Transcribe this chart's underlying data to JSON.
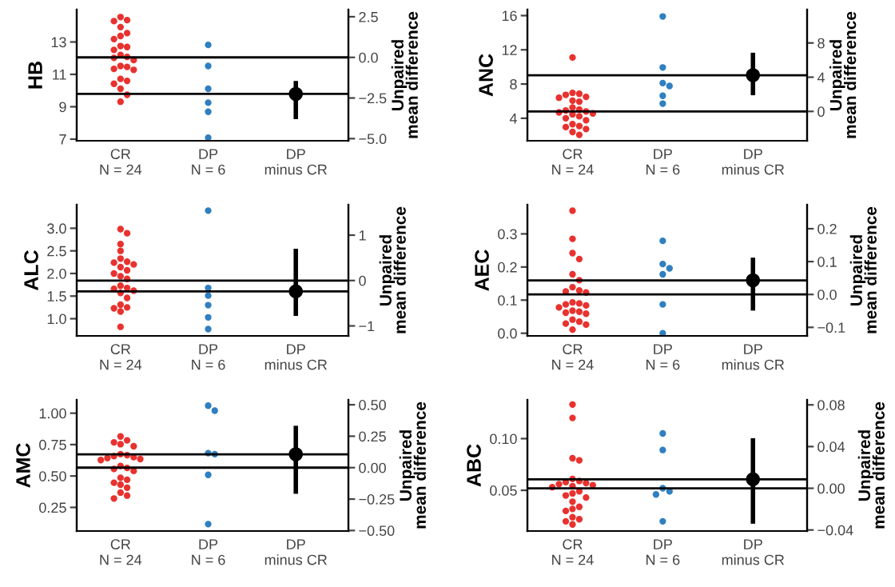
{
  "chart_data": [
    {
      "type": "scatter",
      "categories": [
        "CR\nN = 24",
        "DP\nN = 6",
        "DP\nminus CR"
      ],
      "ylabel": "HB",
      "y2label": "Unpaired\nmean difference",
      "ylim": [
        6.9,
        15.0
      ],
      "yticks": [
        7,
        9,
        11,
        13
      ],
      "y2lim": [
        -5.13,
        2.94
      ],
      "y2ticks": [
        {
          "value": -5,
          "label": "−5.0"
        },
        {
          "value": -2.5,
          "label": "−2.5"
        },
        {
          "value": 0,
          "label": "0.0"
        },
        {
          "value": 2.5,
          "label": "2.5"
        }
      ],
      "marker": "circle",
      "series": [
        {
          "color": "#e8322f",
          "x": [
            "CR\nN = 24",
            "CR\nN = 24",
            "CR\nN = 24",
            "CR\nN = 24",
            "CR\nN = 24",
            "CR\nN = 24",
            "CR\nN = 24",
            "CR\nN = 24",
            "CR\nN = 24",
            "CR\nN = 24",
            "CR\nN = 24",
            "CR\nN = 24",
            "CR\nN = 24",
            "CR\nN = 24",
            "CR\nN = 24",
            "CR\nN = 24",
            "CR\nN = 24",
            "CR\nN = 24",
            "CR\nN = 24",
            "CR\nN = 24",
            "CR\nN = 24",
            "CR\nN = 24",
            "CR\nN = 24",
            "CR\nN = 24"
          ],
          "values": [
            14.54,
            14.35,
            14.29,
            13.92,
            13.55,
            13.37,
            13.18,
            12.75,
            12.69,
            12.51,
            12.2,
            12.08,
            12.02,
            11.89,
            11.52,
            11.46,
            11.34,
            11.28,
            10.72,
            10.6,
            10.42,
            10.11,
            9.74,
            9.31
          ]
        },
        {
          "color": "#2f7fc1",
          "x": [
            "DP\nN = 6",
            "DP\nN = 6",
            "DP\nN = 6",
            "DP\nN = 6",
            "DP\nN = 6",
            "DP\nN = 6"
          ],
          "values": [
            12.82,
            11.52,
            10.11,
            9.25,
            8.69,
            7.09
          ]
        },
        {
          "color": "#000000",
          "axis": "y2",
          "values": [
            null,
            null,
            -2.25
          ],
          "errors": [
            null,
            null,
            [
              -3.8,
              -1.45
            ]
          ]
        }
      ],
      "ref_lines": [
        {
          "axis": "y2",
          "value": 0,
          "color": "#000000"
        },
        {
          "axis": "y2",
          "value": -2.25,
          "color": "#000000"
        }
      ]
    },
    {
      "type": "scatter",
      "categories": [
        "CR\nN = 24",
        "DP\nN = 6",
        "DP\nminus CR"
      ],
      "ylabel": "ANC",
      "y2label": "Unpaired\nmean difference",
      "ylim": [
        1.37,
        16.7
      ],
      "yticks": [
        4,
        8,
        12,
        16
      ],
      "y2lim": [
        -3.43,
        11.9
      ],
      "y2ticks": [
        0,
        4,
        8
      ],
      "marker": "circle",
      "series": [
        {
          "color": "#e8322f",
          "x": [
            "CR\nN = 24",
            "CR\nN = 24",
            "CR\nN = 24",
            "CR\nN = 24",
            "CR\nN = 24",
            "CR\nN = 24",
            "CR\nN = 24",
            "CR\nN = 24",
            "CR\nN = 24",
            "CR\nN = 24",
            "CR\nN = 24",
            "CR\nN = 24",
            "CR\nN = 24",
            "CR\nN = 24",
            "CR\nN = 24",
            "CR\nN = 24",
            "CR\nN = 24",
            "CR\nN = 24",
            "CR\nN = 24",
            "CR\nN = 24",
            "CR\nN = 24",
            "CR\nN = 24",
            "CR\nN = 24",
            "CR\nN = 24"
          ],
          "values": [
            11.1,
            6.97,
            6.86,
            6.74,
            6.5,
            6.4,
            6.06,
            5.94,
            5.26,
            5.03,
            4.91,
            4.8,
            4.69,
            4.57,
            4.46,
            4.23,
            4.0,
            3.77,
            3.31,
            3.09,
            2.97,
            2.74,
            2.4,
            2.06
          ]
        },
        {
          "color": "#2f7fc1",
          "x": [
            "DP\nN = 6",
            "DP\nN = 6",
            "DP\nN = 6",
            "DP\nN = 6",
            "DP\nN = 6",
            "DP\nN = 6"
          ],
          "values": [
            15.9,
            9.94,
            8.11,
            7.77,
            6.63,
            5.71
          ]
        },
        {
          "color": "#000000",
          "axis": "y2",
          "values": [
            null,
            null,
            4.23
          ],
          "errors": [
            null,
            null,
            [
              1.89,
              6.86
            ]
          ]
        }
      ],
      "ref_lines": [
        {
          "axis": "y2",
          "value": 0,
          "color": "#000000"
        },
        {
          "axis": "y2",
          "value": 4.23,
          "color": "#000000"
        }
      ]
    },
    {
      "type": "scatter",
      "categories": [
        "CR\nN = 24",
        "DP\nN = 6",
        "DP\nminus CR"
      ],
      "ylabel": "ALC",
      "y2label": "Unpaired\nmean difference",
      "ylim": [
        0.62,
        3.52
      ],
      "yticks": [
        {
          "value": 1.0,
          "label": "1.0"
        },
        1.5,
        {
          "value": 2.0,
          "label": "2.0"
        },
        2.5,
        {
          "value": 3.0,
          "label": "3.0"
        }
      ],
      "y2lim": [
        -1.22,
        1.67
      ],
      "y2ticks": [
        {
          "value": -1,
          "label": "−1"
        },
        0,
        1
      ],
      "marker": "circle",
      "series": [
        {
          "color": "#e8322f",
          "x": [
            "CR\nN = 24",
            "CR\nN = 24",
            "CR\nN = 24",
            "CR\nN = 24",
            "CR\nN = 24",
            "CR\nN = 24",
            "CR\nN = 24",
            "CR\nN = 24",
            "CR\nN = 24",
            "CR\nN = 24",
            "CR\nN = 24",
            "CR\nN = 24",
            "CR\nN = 24",
            "CR\nN = 24",
            "CR\nN = 24",
            "CR\nN = 24",
            "CR\nN = 24",
            "CR\nN = 24",
            "CR\nN = 24",
            "CR\nN = 24",
            "CR\nN = 24",
            "CR\nN = 24",
            "CR\nN = 24",
            "CR\nN = 24"
          ],
          "values": [
            2.98,
            2.89,
            2.65,
            2.5,
            2.33,
            2.26,
            2.24,
            2.2,
            2.14,
            2.07,
            2.0,
            1.94,
            1.88,
            1.73,
            1.68,
            1.66,
            1.62,
            1.57,
            1.46,
            1.31,
            1.25,
            1.23,
            1.16,
            0.82
          ]
        },
        {
          "color": "#2f7fc1",
          "x": [
            "DP\nN = 6",
            "DP\nN = 6",
            "DP\nN = 6",
            "DP\nN = 6",
            "DP\nN = 6",
            "DP\nN = 6"
          ],
          "values": [
            3.39,
            1.68,
            1.51,
            1.3,
            1.03,
            0.77
          ]
        },
        {
          "color": "#000000",
          "axis": "y2",
          "values": [
            null,
            null,
            -0.24
          ],
          "errors": [
            null,
            null,
            [
              -0.78,
              0.7
            ]
          ]
        }
      ],
      "ref_lines": [
        {
          "axis": "y2",
          "value": 0,
          "color": "#000000"
        },
        {
          "axis": "y2",
          "value": -0.24,
          "color": "#000000"
        }
      ]
    },
    {
      "type": "scatter",
      "categories": [
        "CR\nN = 24",
        "DP\nN = 6",
        "DP\nminus CR"
      ],
      "ylabel": "AEC",
      "y2label": "Unpaired\nmean difference",
      "ylim": [
        -0.008,
        0.388
      ],
      "yticks": [
        {
          "value": 0,
          "label": "0.0"
        },
        0.1,
        0.2,
        0.3
      ],
      "y2lim": [
        -0.126,
        0.273
      ],
      "y2ticks": [
        {
          "value": -0.1,
          "label": "−0.1"
        },
        {
          "value": 0,
          "label": "0.0"
        },
        0.1,
        0.2
      ],
      "marker": "circle",
      "series": [
        {
          "color": "#e8322f",
          "x": [
            "CR\nN = 24",
            "CR\nN = 24",
            "CR\nN = 24",
            "CR\nN = 24",
            "CR\nN = 24",
            "CR\nN = 24",
            "CR\nN = 24",
            "CR\nN = 24",
            "CR\nN = 24",
            "CR\nN = 24",
            "CR\nN = 24",
            "CR\nN = 24",
            "CR\nN = 24",
            "CR\nN = 24",
            "CR\nN = 24",
            "CR\nN = 24",
            "CR\nN = 24",
            "CR\nN = 24",
            "CR\nN = 24",
            "CR\nN = 24",
            "CR\nN = 24",
            "CR\nN = 24",
            "CR\nN = 24",
            "CR\nN = 24"
          ],
          "values": [
            0.37,
            0.285,
            0.242,
            0.224,
            0.178,
            0.16,
            0.139,
            0.129,
            0.126,
            0.123,
            0.093,
            0.09,
            0.087,
            0.084,
            0.078,
            0.068,
            0.065,
            0.062,
            0.059,
            0.041,
            0.035,
            0.029,
            0.026,
            0.011
          ]
        },
        {
          "color": "#2f7fc1",
          "x": [
            "DP\nN = 6",
            "DP\nN = 6",
            "DP\nN = 6",
            "DP\nN = 6",
            "DP\nN = 6",
            "DP\nN = 6"
          ],
          "values": [
            0.279,
            0.209,
            0.196,
            0.178,
            0.087,
            0.0
          ]
        },
        {
          "color": "#000000",
          "axis": "y2",
          "values": [
            null,
            null,
            0.043
          ],
          "errors": [
            null,
            null,
            [
              -0.049,
              0.112
            ]
          ]
        }
      ],
      "ref_lines": [
        {
          "axis": "y2",
          "value": 0,
          "color": "#000000"
        },
        {
          "axis": "y2",
          "value": 0.043,
          "color": "#000000"
        }
      ]
    },
    {
      "type": "scatter",
      "categories": [
        "CR\nN = 24",
        "DP\nN = 6",
        "DP\nminus CR"
      ],
      "ylabel": "AMC",
      "y2label": "Unpaired\nmean difference",
      "ylim": [
        0.062,
        1.106
      ],
      "yticks": [
        0.25,
        {
          "value": 0.5,
          "label": "0.50"
        },
        0.75,
        {
          "value": 1.0,
          "label": "1.00"
        }
      ],
      "y2lim": [
        -0.504,
        0.539
      ],
      "y2ticks": [
        {
          "value": -0.5,
          "label": "−0.50"
        },
        {
          "value": -0.25,
          "label": "−0.25"
        },
        {
          "value": 0,
          "label": "0.00"
        },
        0.25,
        {
          "value": 0.5,
          "label": "0.50"
        }
      ],
      "marker": "circle",
      "series": [
        {
          "color": "#e8322f",
          "x": [
            "CR\nN = 24",
            "CR\nN = 24",
            "CR\nN = 24",
            "CR\nN = 24",
            "CR\nN = 24",
            "CR\nN = 24",
            "CR\nN = 24",
            "CR\nN = 24",
            "CR\nN = 24",
            "CR\nN = 24",
            "CR\nN = 24",
            "CR\nN = 24",
            "CR\nN = 24",
            "CR\nN = 24",
            "CR\nN = 24",
            "CR\nN = 24",
            "CR\nN = 24",
            "CR\nN = 24",
            "CR\nN = 24",
            "CR\nN = 24",
            "CR\nN = 24",
            "CR\nN = 24",
            "CR\nN = 24",
            "CR\nN = 24"
          ],
          "values": [
            0.815,
            0.784,
            0.768,
            0.753,
            0.737,
            0.674,
            0.666,
            0.658,
            0.65,
            0.643,
            0.635,
            0.627,
            0.58,
            0.564,
            0.556,
            0.54,
            0.486,
            0.47,
            0.446,
            0.431,
            0.407,
            0.368,
            0.344,
            0.321
          ]
        },
        {
          "color": "#2f7fc1",
          "x": [
            "DP\nN = 6",
            "DP\nN = 6",
            "DP\nN = 6",
            "DP\nN = 6",
            "DP\nN = 6",
            "DP\nN = 6"
          ],
          "values": [
            1.06,
            1.02,
            0.682,
            0.674,
            0.509,
            0.117
          ]
        },
        {
          "color": "#000000",
          "axis": "y2",
          "values": [
            null,
            null,
            0.106
          ],
          "errors": [
            null,
            null,
            [
              -0.208,
              0.333
            ]
          ]
        }
      ],
      "ref_lines": [
        {
          "axis": "y2",
          "value": 0,
          "color": "#000000"
        },
        {
          "axis": "y2",
          "value": 0.106,
          "color": "#000000"
        }
      ]
    },
    {
      "type": "scatter",
      "categories": [
        "CR\nN = 24",
        "DP\nN = 6",
        "DP\nminus CR"
      ],
      "ylabel": "ABC",
      "y2label": "Unpaired\nmean difference",
      "ylim": [
        0.0106,
        0.1375
      ],
      "yticks": [
        0.05,
        {
          "value": 0.1,
          "label": "0.10"
        }
      ],
      "y2lim": [
        -0.041,
        0.0848
      ],
      "y2ticks": [
        {
          "value": -0.04,
          "label": "−0.04"
        },
        {
          "value": 0,
          "label": "0.00"
        },
        0.04,
        0.08
      ],
      "marker": "circle",
      "series": [
        {
          "color": "#e8322f",
          "x": [
            "CR\nN = 24",
            "CR\nN = 24",
            "CR\nN = 24",
            "CR\nN = 24",
            "CR\nN = 24",
            "CR\nN = 24",
            "CR\nN = 24",
            "CR\nN = 24",
            "CR\nN = 24",
            "CR\nN = 24",
            "CR\nN = 24",
            "CR\nN = 24",
            "CR\nN = 24",
            "CR\nN = 24",
            "CR\nN = 24",
            "CR\nN = 24",
            "CR\nN = 24",
            "CR\nN = 24",
            "CR\nN = 24",
            "CR\nN = 24",
            "CR\nN = 24",
            "CR\nN = 24",
            "CR\nN = 24",
            "CR\nN = 24"
          ],
          "values": [
            0.133,
            0.12,
            0.081,
            0.079,
            0.061,
            0.059,
            0.058,
            0.057,
            0.056,
            0.055,
            0.054,
            0.053,
            0.049,
            0.047,
            0.045,
            0.043,
            0.039,
            0.034,
            0.032,
            0.03,
            0.024,
            0.022,
            0.02,
            0.017
          ]
        },
        {
          "color": "#2f7fc1",
          "x": [
            "DP\nN = 6",
            "DP\nN = 6",
            "DP\nN = 6",
            "DP\nN = 6",
            "DP\nN = 6",
            "DP\nN = 6"
          ],
          "values": [
            0.105,
            0.089,
            0.052,
            0.049,
            0.046,
            0.02
          ]
        },
        {
          "color": "#000000",
          "axis": "y2",
          "values": [
            null,
            null,
            0.0086
          ],
          "errors": [
            null,
            null,
            [
              -0.034,
              0.048
            ]
          ]
        }
      ],
      "ref_lines": [
        {
          "axis": "y2",
          "value": 0,
          "color": "#000000"
        },
        {
          "axis": "y2",
          "value": 0.0086,
          "color": "#000000"
        }
      ]
    }
  ]
}
